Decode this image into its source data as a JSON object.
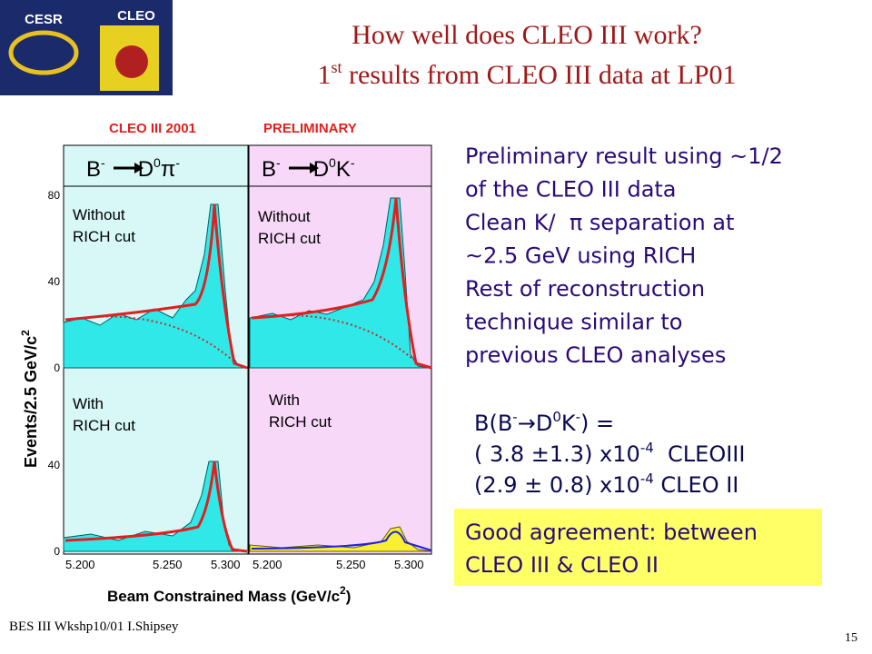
{
  "header": {
    "logo_left": "CESR",
    "logo_right": "CLEO",
    "title_line1": "How well does CLEO III work?",
    "title_line2": {
      "pre": "1",
      "sup": "st",
      "post": " results from CLEO III data at LP01"
    }
  },
  "figure": {
    "label_left": "CLEO III 2001",
    "label_right": "PRELIMINARY",
    "panel_left_header": [
      "B",
      "-",
      "D",
      "0",
      "π",
      "-"
    ],
    "panel_right_header": [
      "B",
      "-",
      "D",
      "0",
      "K",
      "-"
    ],
    "upper_left_note": [
      "Without",
      "RICH cut"
    ],
    "upper_right_note": [
      "Without",
      "RICH cut"
    ],
    "lower_left_note": [
      "With",
      "RICH cut"
    ],
    "lower_right_note": [
      "With",
      "RICH cut"
    ],
    "y_ticks_upper": [
      "80",
      "40",
      "0"
    ],
    "y_ticks_lower": [
      "40",
      "0"
    ],
    "x_ticks_left": [
      "5.200",
      "5.250",
      "5.300"
    ],
    "x_ticks_right": [
      "5.200",
      "5.250",
      "5.300"
    ],
    "y_axis_label": {
      "pre": "Events/2.5 GeV/c",
      "sup": "2"
    },
    "x_axis_label": {
      "pre": "Beam Constrained Mass (GeV/c",
      "sup": "2",
      "post": ")"
    }
  },
  "bullets": [
    "Preliminary result using ~1/2",
    "of the CLEO III data",
    "Clean K/  π separation at",
    "~2.5 GeV using RICH",
    "Rest of reconstruction",
    "technique similar to",
    "previous CLEO analyses"
  ],
  "formula": {
    "line1": [
      "B(B",
      "-",
      "→",
      "D",
      "0",
      "K",
      "-",
      ") ="
    ],
    "line2": [
      "( 3.8 ±1.3) x10",
      "-4",
      "  CLEOIII"
    ],
    "line3": [
      "(2.9 ± 0.8) x10",
      "-4",
      " CLEO II"
    ]
  },
  "conclusion": [
    "Good agreement: between",
    "CLEO III & CLEO II"
  ],
  "footer": {
    "left": "BES III Wkshp10/01 I.Shipsey",
    "page": "15"
  }
}
